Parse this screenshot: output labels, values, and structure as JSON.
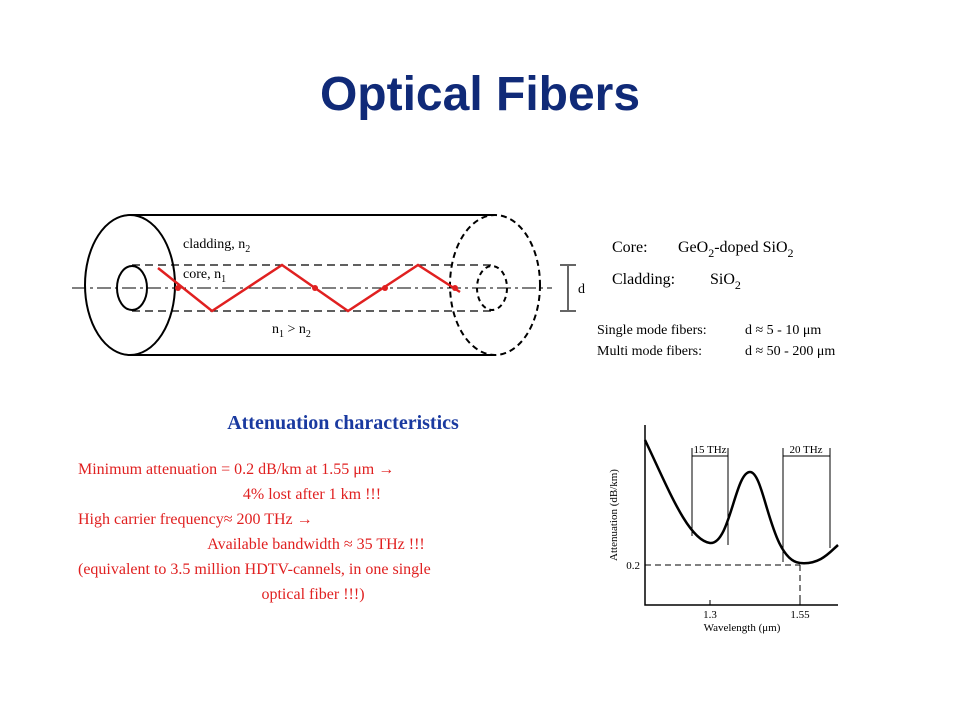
{
  "title": "Optical Fibers",
  "fiber_diagram": {
    "cladding_label": [
      "cladding, n",
      "2"
    ],
    "core_label": [
      "core, n",
      "1"
    ],
    "index_relation": [
      "n",
      "1",
      " > n",
      "2"
    ],
    "diameter_label": "d"
  },
  "materials": [
    {
      "label": "Core:",
      "value": [
        "GeO",
        "2",
        "-doped SiO",
        "2"
      ]
    },
    {
      "label": "Cladding:",
      "value": [
        "SiO",
        "2"
      ]
    }
  ],
  "fiber_modes": [
    {
      "label": "Single mode fibers:",
      "value": "d ≈ 5 - 10 μm"
    },
    {
      "label": "Multi mode fibers:",
      "value": "d ≈ 50 - 200 μm"
    }
  ],
  "attenuation": {
    "heading": "Attenuation characteristics",
    "lines": [
      "Minimum attenuation = 0.2 dB/km at 1.55 μm →",
      "4% lost after 1 km !!!",
      "High carrier frequency≈ 200 THz →",
      "Available bandwidth ≈ 35 THz !!!",
      "(equivalent to 3.5 million HDTV-cannels, in one single",
      "optical fiber !!!)"
    ]
  },
  "plot": {
    "y_label": "Attenuation (dB/km)",
    "x_label": "Wavelength (μm)",
    "y_tick": "0.2",
    "x_ticks": [
      "1.3",
      "1.55"
    ],
    "bands": [
      "15 THz",
      "20 THz"
    ]
  }
}
